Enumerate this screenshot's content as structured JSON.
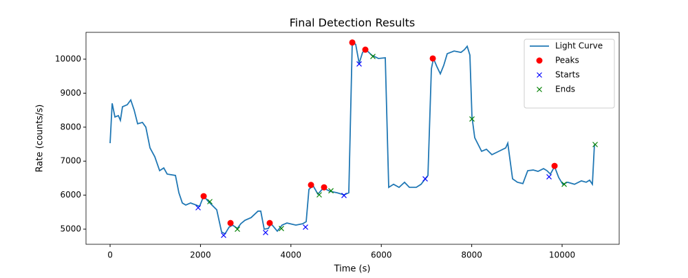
{
  "chart_data": {
    "type": "line",
    "title": "Final Detection Results",
    "xlabel": "Time (s)",
    "ylabel": "Rate (counts/s)",
    "xlim": [
      -533,
      11263
    ],
    "ylim": [
      4555,
      10789
    ],
    "xticks": [
      0,
      2000,
      4000,
      6000,
      8000,
      10000
    ],
    "yticks": [
      5000,
      6000,
      7000,
      8000,
      9000,
      10000
    ],
    "legend": "upper right",
    "series": [
      {
        "name": "Light Curve",
        "color": "#1f77b4",
        "marker": "none",
        "x": [
          0,
          46,
          107,
          183,
          228,
          274,
          380,
          457,
          533,
          609,
          715,
          791,
          883,
          989,
          1096,
          1187,
          1263,
          1446,
          1522,
          1598,
          1674,
          1781,
          1903,
          1979,
          2070,
          2177,
          2359,
          2466,
          2542,
          2633,
          2709,
          2816,
          2892,
          2983,
          3120,
          3272,
          3333,
          3409,
          3500,
          3561,
          3699,
          3805,
          3912,
          4110,
          4262,
          4338,
          4399,
          4490,
          4597,
          4718,
          4870,
          5022,
          5175,
          5281,
          5358,
          5434,
          5510,
          5586,
          5662,
          5784,
          5936,
          6088,
          6164,
          6271,
          6393,
          6514,
          6621,
          6773,
          6880,
          6971,
          7032,
          7108,
          7154,
          7230,
          7306,
          7382,
          7458,
          7610,
          7763,
          7839,
          7900,
          7960,
          8006,
          8067,
          8143,
          8219,
          8326,
          8447,
          8600,
          8752,
          8798,
          8904,
          9011,
          9132,
          9239,
          9361,
          9467,
          9589,
          9665,
          9741,
          9833,
          9924,
          10015,
          10122,
          10274,
          10426,
          10533,
          10609,
          10670,
          10715
        ],
        "values": [
          7530,
          8700,
          8300,
          8340,
          8200,
          8600,
          8660,
          8800,
          8500,
          8100,
          8140,
          8000,
          7390,
          7130,
          6720,
          6800,
          6620,
          6580,
          6070,
          5770,
          5710,
          5770,
          5710,
          5670,
          5970,
          5810,
          5570,
          4920,
          4860,
          5060,
          5120,
          5020,
          5160,
          5260,
          5340,
          5530,
          5530,
          5000,
          5020,
          5160,
          4940,
          5120,
          5180,
          5120,
          5160,
          5220,
          6170,
          6280,
          6030,
          6210,
          6110,
          6070,
          6010,
          6070,
          10530,
          10430,
          9880,
          10200,
          10280,
          10120,
          10020,
          10040,
          6230,
          6320,
          6230,
          6380,
          6230,
          6230,
          6320,
          6480,
          6580,
          9720,
          10020,
          9780,
          9570,
          9820,
          10160,
          10240,
          10200,
          10280,
          10380,
          10120,
          8300,
          7690,
          7490,
          7290,
          7350,
          7190,
          7290,
          7390,
          7530,
          6480,
          6380,
          6340,
          6720,
          6740,
          6700,
          6780,
          6720,
          6620,
          6840,
          6520,
          6320,
          6380,
          6320,
          6420,
          6380,
          6440,
          6320,
          7490
        ]
      },
      {
        "name": "Peaks",
        "color": "#ff0000",
        "marker": "circle",
        "x": [
          2070,
          2664,
          3531,
          4445,
          4734,
          5358,
          5647,
          7139,
          9833
        ],
        "values": [
          5970,
          5180,
          5180,
          6300,
          6230,
          10490,
          10280,
          10020,
          6860
        ]
      },
      {
        "name": "Starts",
        "color": "#0000ff",
        "marker": "x",
        "x": [
          1948,
          2511,
          3440,
          4323,
          5175,
          5510,
          6971,
          9711
        ],
        "values": [
          5630,
          4820,
          4900,
          5060,
          5990,
          9860,
          6480,
          6540
        ]
      },
      {
        "name": "Ends",
        "color": "#008000",
        "marker": "x",
        "x": [
          2207,
          2816,
          3790,
          4627,
          4886,
          5814,
          8006,
          10046,
          10731
        ],
        "values": [
          5810,
          5000,
          5020,
          6010,
          6130,
          10080,
          8240,
          6320,
          7490
        ]
      }
    ]
  }
}
